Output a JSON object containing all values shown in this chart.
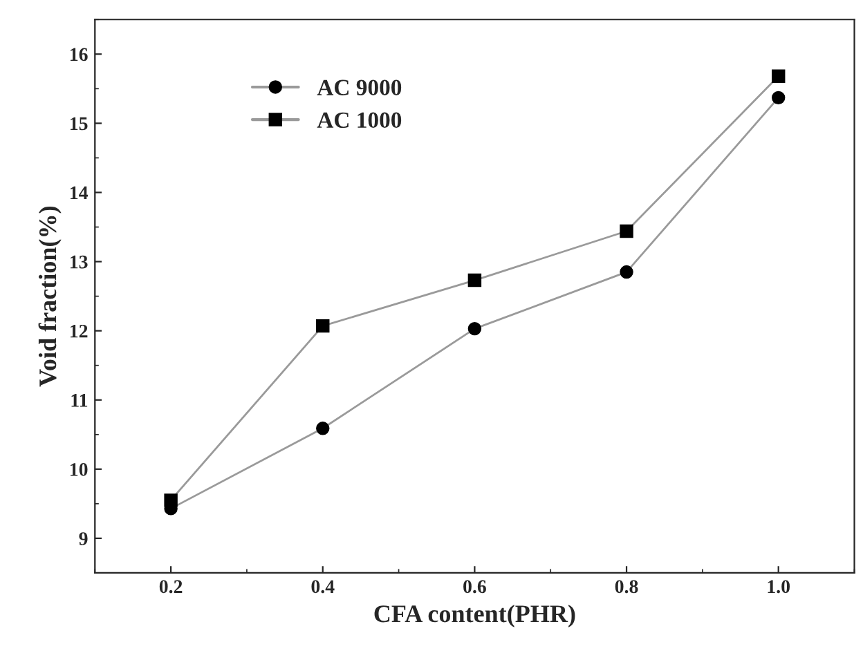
{
  "chart_data": {
    "type": "line",
    "xlabel": "CFA content(PHR)",
    "ylabel": "Void fraction(%)",
    "x": [
      0.2,
      0.4,
      0.6,
      0.8,
      1.0
    ],
    "series": [
      {
        "name": "AC 9000",
        "color": "#000000",
        "marker": "circle",
        "values": [
          9.43,
          10.59,
          12.03,
          12.85,
          15.37
        ]
      },
      {
        "name": "AC 1000",
        "color": "#000000",
        "marker": "square",
        "values": [
          9.55,
          12.07,
          12.73,
          13.44,
          15.68
        ]
      }
    ],
    "xlim": [
      0.1,
      1.1
    ],
    "xticks": [
      {
        "value": 0.2,
        "label": "0.2"
      },
      {
        "value": 0.4,
        "label": "0.4"
      },
      {
        "value": 0.6,
        "label": "0.6"
      },
      {
        "value": 0.8,
        "label": "0.8"
      },
      {
        "value": 1.0,
        "label": "1.0"
      }
    ],
    "ylim": [
      8.5,
      16.5
    ],
    "yticks": [
      9,
      10,
      11,
      12,
      13,
      14,
      15,
      16
    ],
    "legend": "top left",
    "grid": false,
    "line_style": "solid"
  }
}
